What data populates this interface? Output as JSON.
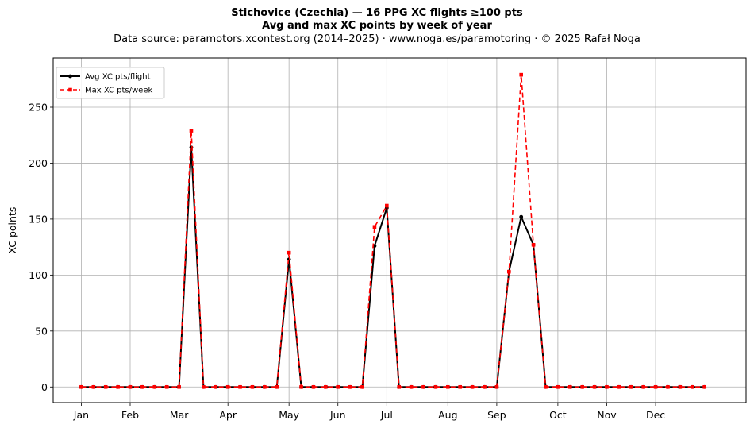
{
  "chart_data": {
    "type": "line",
    "title": "Stichovice (Czechia)  —  16 PPG XC flights ≥100 pts",
    "subtitle": "Avg and max XC points by week of year",
    "source": "Data source: paramotors.xcontest.org (2014–2025)  ·  www.noga.es/paramotoring  ·  © 2025 Rafał Noga",
    "xlabel": "",
    "ylabel": "XC points",
    "x_tick_labels": [
      "Jan",
      "Feb",
      "Mar",
      "Apr",
      "May",
      "Jun",
      "Jul",
      "Aug",
      "Sep",
      "Oct",
      "Nov",
      "Dec"
    ],
    "x_tick_weeks": [
      1,
      5,
      9,
      13,
      18,
      22,
      26,
      31,
      35,
      40,
      44,
      48
    ],
    "x": [
      1,
      2,
      3,
      4,
      5,
      6,
      7,
      8,
      9,
      10,
      11,
      12,
      13,
      14,
      15,
      16,
      17,
      18,
      19,
      20,
      21,
      22,
      23,
      24,
      25,
      26,
      27,
      28,
      29,
      30,
      31,
      32,
      33,
      34,
      35,
      36,
      37,
      38,
      39,
      40,
      41,
      42,
      43,
      44,
      45,
      46,
      47,
      48,
      49,
      50,
      51,
      52
    ],
    "xlim": [
      -1.3,
      55.4
    ],
    "ylim": [
      -14,
      294
    ],
    "yticks": [
      0,
      50,
      100,
      150,
      200,
      250
    ],
    "grid": true,
    "legend_position": "top-left",
    "series": [
      {
        "name": "Avg XC pts/flight",
        "color": "#000000",
        "style": "solid",
        "marker": "circle",
        "values": [
          0,
          0,
          0,
          0,
          0,
          0,
          0,
          0,
          0,
          214,
          0,
          0,
          0,
          0,
          0,
          0,
          0,
          114,
          0,
          0,
          0,
          0,
          0,
          0,
          126,
          160,
          0,
          0,
          0,
          0,
          0,
          0,
          0,
          0,
          0,
          103,
          152,
          127,
          0,
          0,
          0,
          0,
          0,
          0,
          0,
          0,
          0,
          0,
          0,
          0,
          0,
          0
        ]
      },
      {
        "name": "Max XC pts/week",
        "color": "#ff0000",
        "style": "dashed",
        "marker": "square",
        "values": [
          0,
          0,
          0,
          0,
          0,
          0,
          0,
          0,
          0,
          229,
          0,
          0,
          0,
          0,
          0,
          0,
          0,
          120,
          0,
          0,
          0,
          0,
          0,
          0,
          143,
          162,
          0,
          0,
          0,
          0,
          0,
          0,
          0,
          0,
          0,
          103,
          279,
          127,
          0,
          0,
          0,
          0,
          0,
          0,
          0,
          0,
          0,
          0,
          0,
          0,
          0,
          0
        ]
      }
    ]
  }
}
